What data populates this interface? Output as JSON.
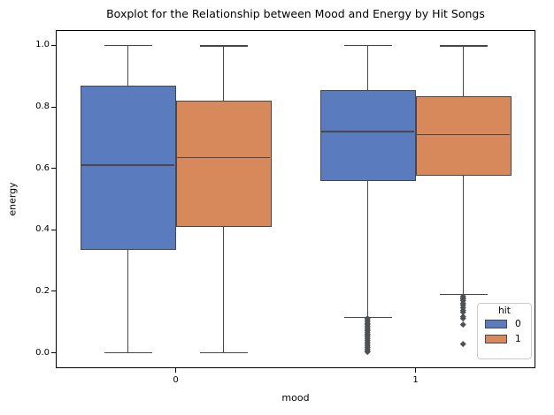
{
  "chart_data": {
    "type": "boxplot",
    "title": "Boxplot for the Relationship between Mood and Energy by Hit Songs",
    "xlabel": "mood",
    "ylabel": "energy",
    "categories": [
      "0",
      "1"
    ],
    "xlim": [
      -0.5,
      1.5
    ],
    "ylim": [
      -0.05,
      1.05
    ],
    "grid": false,
    "yticks": [
      0.0,
      0.2,
      0.4,
      0.6,
      0.8,
      1.0
    ],
    "ytick_labels": [
      "0.0",
      "0.2",
      "0.4",
      "0.6",
      "0.8",
      "1.0"
    ],
    "xtick_labels": [
      "0",
      "1"
    ],
    "legend": {
      "title": "hit",
      "position": "lower right",
      "entries": [
        {
          "label": "0",
          "color": "#5a7bbd"
        },
        {
          "label": "1",
          "color": "#d8895c"
        }
      ]
    },
    "line_color": "#45494c",
    "series": [
      {
        "name": "0",
        "color": "#5a7bbd",
        "boxes": [
          {
            "category": "0",
            "whisker_low": 0.0,
            "q1": 0.335,
            "median": 0.61,
            "q3": 0.87,
            "whisker_high": 1.0,
            "outliers": []
          },
          {
            "category": "1",
            "whisker_low": 0.115,
            "q1": 0.56,
            "median": 0.72,
            "q3": 0.855,
            "whisker_high": 1.0,
            "outliers": [
              0.112,
              0.107,
              0.102,
              0.097,
              0.092,
              0.087,
              0.082,
              0.077,
              0.072,
              0.067,
              0.062,
              0.057,
              0.052,
              0.047,
              0.042,
              0.036,
              0.03,
              0.024,
              0.018,
              0.012,
              0.006,
              0.003
            ]
          }
        ]
      },
      {
        "name": "1",
        "color": "#d8895c",
        "boxes": [
          {
            "category": "0",
            "whisker_low": 0.0,
            "q1": 0.41,
            "median": 0.635,
            "q3": 0.82,
            "whisker_high": 0.998,
            "outliers": []
          },
          {
            "category": "1",
            "whisker_low": 0.19,
            "q1": 0.575,
            "median": 0.71,
            "q3": 0.835,
            "whisker_high": 0.998,
            "outliers": [
              0.185,
              0.18,
              0.175,
              0.17,
              0.163,
              0.155,
              0.147,
              0.14,
              0.133,
              0.118,
              0.113,
              0.092,
              0.03
            ]
          }
        ]
      }
    ]
  }
}
